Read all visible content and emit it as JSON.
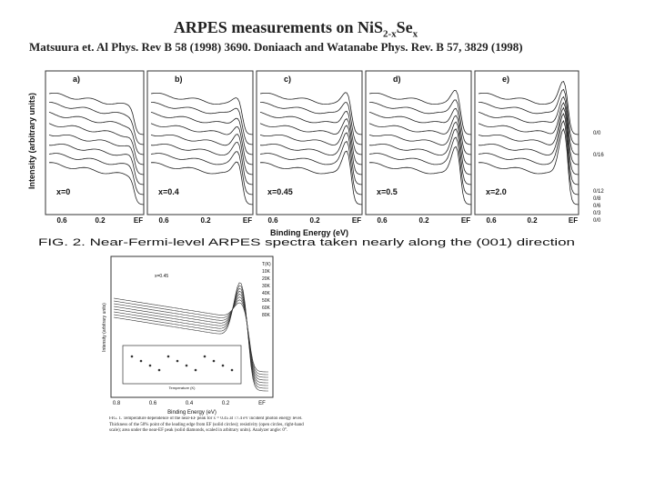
{
  "header": {
    "title": {
      "text": "ARPES measurements on NiS",
      "sub1": "2-x",
      "mid": "Se",
      "sub2": "x"
    },
    "citation": "Matsuura et. Al Phys. Rev B 58 (1998) 3690. Doniaach and Watanabe Phys. Rev. B 57, 3829 (1998)"
  },
  "figure1": {
    "y_label": "Intensity (arbitrary units)",
    "panels": [
      {
        "tag": "a)",
        "label": "x=0"
      },
      {
        "tag": "b)",
        "label": "x=0.4"
      },
      {
        "tag": "c)",
        "label": "x=0.45"
      },
      {
        "tag": "d)",
        "label": "x=0.5"
      },
      {
        "tag": "e)",
        "label": "x=2.0"
      }
    ],
    "x_ticks": [
      "0.6",
      "0.2",
      "EF"
    ],
    "angles": [
      "0/0",
      "0/16",
      "0/12",
      "0/8",
      "0/6",
      "0/3",
      "0/0"
    ],
    "x_label": "Binding Energy (eV)",
    "caption": "FIG. 2. Near-Fermi-level ARPES spectra taken nearly along the (001) direction"
  },
  "figure2": {
    "legend": [
      "x=0.45"
    ],
    "temps": [
      "T(K)",
      "10K",
      "20K",
      "30K",
      "40K",
      "50K",
      "60K",
      "80K"
    ],
    "y_label": "Intensity (arbitrary units)",
    "inset_x_label": "Temperature (K)",
    "x_ticks": [
      "0.8",
      "0.6",
      "0.4",
      "0.2",
      "EF"
    ],
    "x_label": "Binding Energy (eV)",
    "caption": "FIG. 1. Temperature dependence of the near-EF peak for x = 0.45 at 77.4 eV incident photon energy level. Thickness of the 50% point of the leading edge from EF (solid circles); resistivity (open circles, right-hand scale); area under the near-EF peak (solid diamonds, scaled in arbitrary units). Analyzer angle: 0°."
  }
}
